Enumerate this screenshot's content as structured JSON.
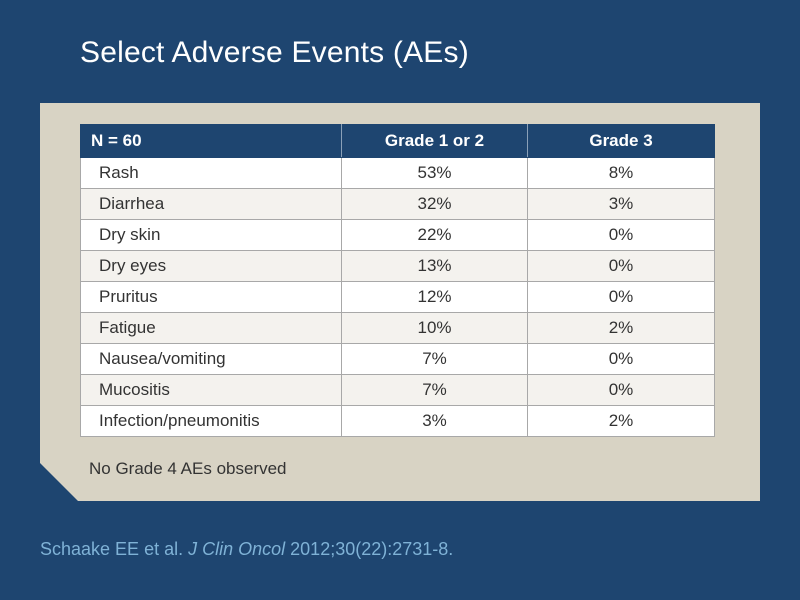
{
  "slide": {
    "title": "Select Adverse Events (AEs)"
  },
  "table": {
    "headers": [
      "N = 60",
      "Grade 1 or 2",
      "Grade 3"
    ],
    "rows": [
      {
        "event": "Rash",
        "grade_1_2": "53%",
        "grade_3": "8%"
      },
      {
        "event": "Diarrhea",
        "grade_1_2": "32%",
        "grade_3": "3%"
      },
      {
        "event": "Dry skin",
        "grade_1_2": "22%",
        "grade_3": "0%"
      },
      {
        "event": "Dry eyes",
        "grade_1_2": "13%",
        "grade_3": "0%"
      },
      {
        "event": "Pruritus",
        "grade_1_2": "12%",
        "grade_3": "0%"
      },
      {
        "event": "Fatigue",
        "grade_1_2": "10%",
        "grade_3": "2%"
      },
      {
        "event": "Nausea/vomiting",
        "grade_1_2": "7%",
        "grade_3": "0%"
      },
      {
        "event": "Mucositis",
        "grade_1_2": "7%",
        "grade_3": "0%"
      },
      {
        "event": "Infection/pneumonitis",
        "grade_1_2": "3%",
        "grade_3": "2%"
      }
    ]
  },
  "footnote": "No Grade 4 AEs observed",
  "citation": {
    "authors": "Schaake EE et al.",
    "journal": "J Clin Oncol",
    "details": "2012;30(22):2731-8."
  },
  "colors": {
    "background": "#1e4570",
    "panel": "#d8d3c4",
    "header_bg": "#1e4570",
    "citation_text": "#7fb2d6"
  }
}
